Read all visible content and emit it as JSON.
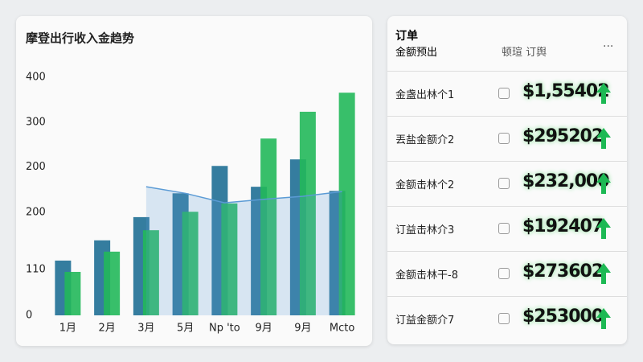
{
  "chart_data": {
    "type": "bar",
    "title": "摩登出行收入金趋势",
    "categories": [
      "1月",
      "2月",
      "3月",
      "5月",
      "Np 'to",
      "9月",
      "9月",
      "Mcto"
    ],
    "series": [
      {
        "color": "#1f6f95",
        "values": [
          92,
          126,
          165,
          205,
          251,
          216,
          262,
          209
        ]
      },
      {
        "color": "#22b85a",
        "values": [
          73,
          107,
          143,
          174,
          188,
          297,
          342,
          374
        ]
      },
      {
        "type": "area",
        "color": "#5b9bd5",
        "values": [
          null,
          null,
          216,
          205,
          189,
          195,
          200,
          208
        ]
      }
    ],
    "ylim": [
      0,
      400
    ],
    "yticks": [
      0,
      {
        "value": 77,
        "label": "110"
      },
      {
        "value": 173,
        "label": "200"
      },
      {
        "value": 249,
        "label": "200"
      },
      {
        "value": 324,
        "label": "300"
      },
      400
    ]
  },
  "panel": {
    "title": "订单",
    "subtitle": "金额预出",
    "filter": "顿瑄  订舆",
    "menu": "···",
    "rows": [
      {
        "label": "金盏出林个1",
        "amount": "$1,55402"
      },
      {
        "label": "丟盐金额介2",
        "amount": "$295202"
      },
      {
        "label": "金额击林个2",
        "amount": "$232,000"
      },
      {
        "label": "订益击林介3",
        "amount": "$192407"
      },
      {
        "label": "金额击林干-8",
        "amount": "$273602"
      },
      {
        "label": "订益金额介7",
        "amount": "$253000"
      }
    ]
  }
}
